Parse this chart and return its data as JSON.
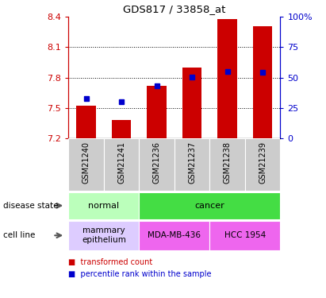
{
  "title": "GDS817 / 33858_at",
  "samples": [
    "GSM21240",
    "GSM21241",
    "GSM21236",
    "GSM21237",
    "GSM21238",
    "GSM21239"
  ],
  "transformed_count": [
    7.52,
    7.38,
    7.72,
    7.9,
    8.37,
    8.3
  ],
  "percentile_rank": [
    33,
    30,
    43,
    50,
    55,
    54
  ],
  "ylim_left": [
    7.2,
    8.4
  ],
  "ylim_right": [
    0,
    100
  ],
  "yticks_left": [
    7.2,
    7.5,
    7.8,
    8.1,
    8.4
  ],
  "yticks_right": [
    0,
    25,
    50,
    75,
    100
  ],
  "bar_color": "#cc0000",
  "dot_color": "#0000cc",
  "bar_bottom": 7.2,
  "disease_state": {
    "groups": [
      {
        "label": "normal",
        "span": [
          0,
          2
        ],
        "color": "#bbffbb"
      },
      {
        "label": "cancer",
        "span": [
          2,
          6
        ],
        "color": "#44dd44"
      }
    ]
  },
  "cell_line": {
    "groups": [
      {
        "label": "mammary\nepithelium",
        "span": [
          0,
          2
        ],
        "color": "#ddccff"
      },
      {
        "label": "MDA-MB-436",
        "span": [
          2,
          4
        ],
        "color": "#ee66ee"
      },
      {
        "label": "HCC 1954",
        "span": [
          4,
          6
        ],
        "color": "#ee66ee"
      }
    ]
  },
  "legend": [
    {
      "label": "transformed count",
      "color": "#cc0000"
    },
    {
      "label": "percentile rank within the sample",
      "color": "#0000cc"
    }
  ],
  "bg_color": "#ffffff",
  "tick_color_left": "#cc0000",
  "tick_color_right": "#0000cc",
  "xtick_bg": "#cccccc",
  "left_label_color": "#555555"
}
